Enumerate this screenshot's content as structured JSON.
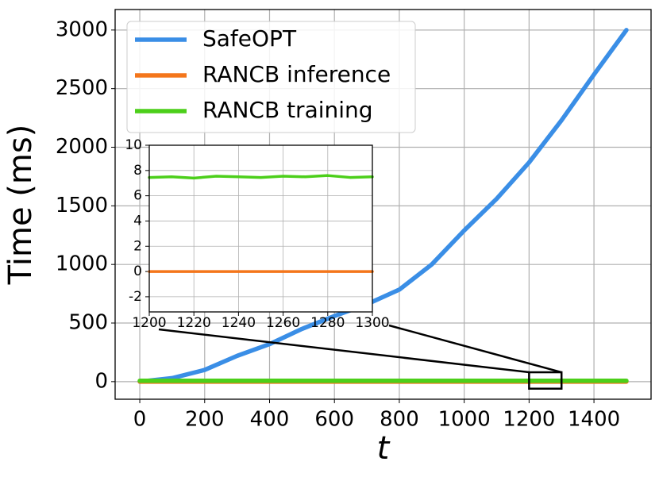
{
  "chart_data": [
    {
      "type": "line",
      "xlabel": "t",
      "ylabel": "Time (ms)",
      "x": [
        0,
        100,
        200,
        300,
        400,
        500,
        600,
        700,
        800,
        900,
        1000,
        1100,
        1200,
        1300,
        1400,
        1500
      ],
      "series": [
        {
          "name": "SafeOPT",
          "color": "#3a8ee6",
          "values": [
            0,
            30,
            100,
            220,
            320,
            450,
            560,
            660,
            785,
            1000,
            1290,
            1560,
            1870,
            2230,
            2620,
            3000
          ]
        },
        {
          "name": "RANCB inference",
          "color": "#f4761b",
          "values": [
            0,
            0,
            0,
            0,
            0,
            0,
            0,
            0,
            0,
            0,
            0,
            0,
            0,
            0,
            0,
            0
          ]
        },
        {
          "name": "RANCB training",
          "color": "#4ccf1a",
          "values": [
            7.5,
            7.5,
            7.5,
            7.5,
            7.5,
            7.5,
            7.5,
            7.5,
            7.5,
            7.5,
            7.5,
            7.5,
            7.5,
            7.5,
            7.5,
            7.5
          ]
        }
      ],
      "xlim": [
        -76,
        1576
      ],
      "ylim": [
        -150,
        3175
      ],
      "xticks": [
        0,
        200,
        400,
        600,
        800,
        1000,
        1200,
        1400
      ],
      "yticks": [
        0,
        500,
        1000,
        1500,
        2000,
        2500,
        3000
      ],
      "grid": true,
      "legend": "upper left",
      "zoom_box": {
        "x": [
          1200,
          1300
        ],
        "y": [
          -60,
          80
        ]
      }
    },
    {
      "type": "line",
      "x": [
        1200,
        1210,
        1220,
        1230,
        1240,
        1250,
        1260,
        1270,
        1280,
        1290,
        1300
      ],
      "series": [
        {
          "color": "#f4761b",
          "values": [
            0,
            0,
            0,
            0,
            0,
            0,
            0,
            0,
            0,
            0,
            0
          ]
        },
        {
          "color": "#4ccf1a",
          "values": [
            7.45,
            7.5,
            7.4,
            7.55,
            7.5,
            7.45,
            7.55,
            7.5,
            7.6,
            7.45,
            7.5
          ]
        }
      ],
      "xlim": [
        1200,
        1300
      ],
      "ylim": [
        -3.2,
        10
      ],
      "xticks": [
        1200,
        1220,
        1240,
        1260,
        1280,
        1300
      ],
      "yticks": [
        -2,
        0,
        2,
        4,
        6,
        8,
        10
      ],
      "grid": true
    }
  ]
}
